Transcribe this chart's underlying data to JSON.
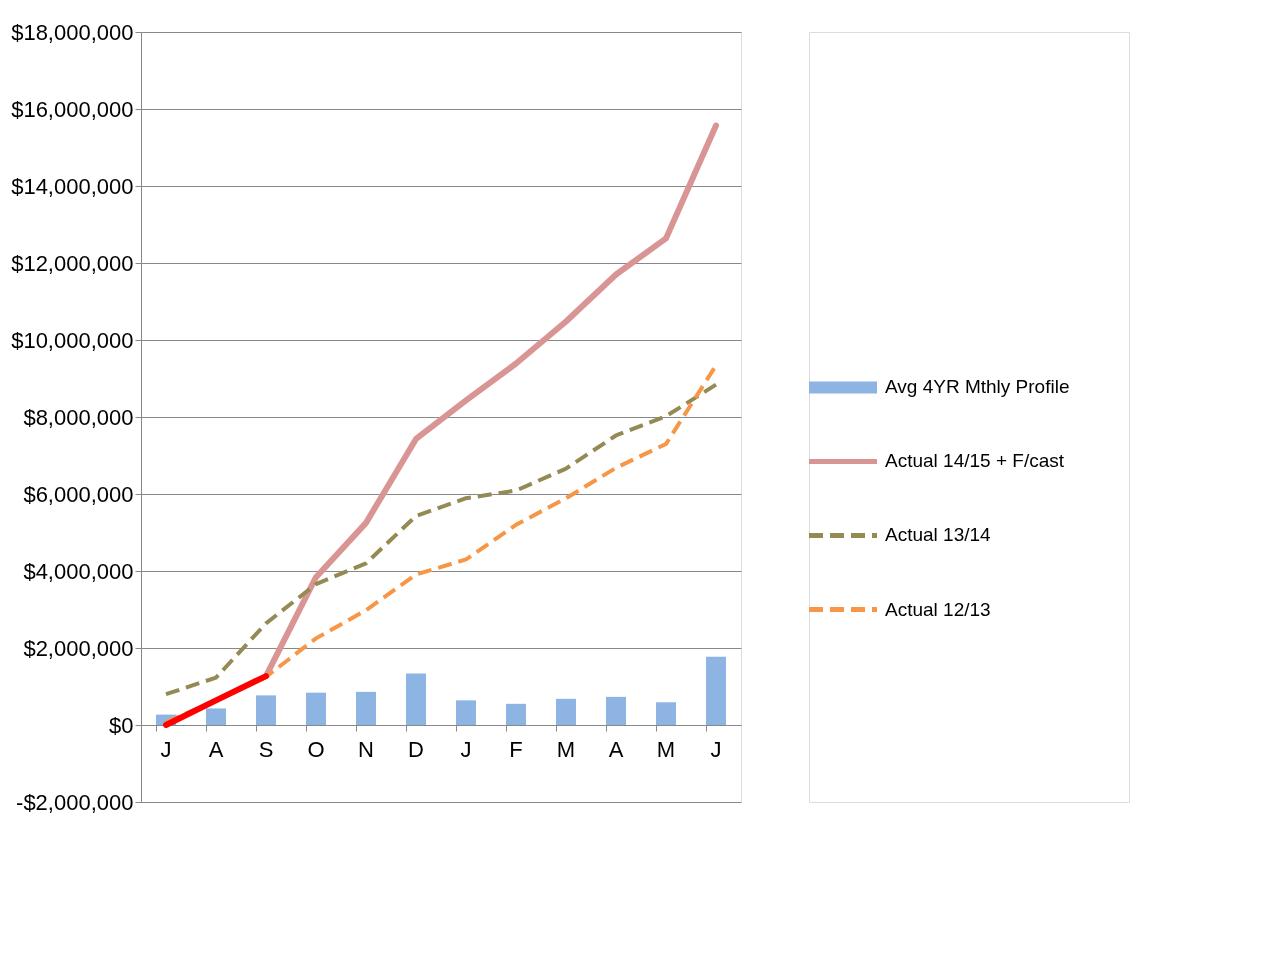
{
  "chart_data": {
    "type": "line",
    "categories": [
      "J",
      "A",
      "S",
      "O",
      "N",
      "D",
      "J",
      "F",
      "M",
      "A",
      "M",
      "J"
    ],
    "series": [
      {
        "name": "Avg 4YR Mthly Profile",
        "type": "bar",
        "color": "#8db4e2",
        "values": [
          270000.0,
          430000.0,
          770000.0,
          840000.0,
          860000.0,
          1340000.0,
          640000.0,
          550000.0,
          680000.0,
          730000.0,
          590000.0,
          1770000.0
        ]
      },
      {
        "name": "Actual 14/15 + F/cast",
        "color": "#d99594",
        "line_style": "solid",
        "values": [
          null,
          null,
          1270000.0,
          3840000.0,
          5250000.0,
          7430000.0,
          8430000.0,
          9390000.0,
          10480000.0,
          11700000.0,
          12640000.0,
          15570000.0
        ]
      },
      {
        "name": "Actual 13/14",
        "color": "#948a54",
        "line_style": "dashed",
        "values": [
          800000.0,
          1230000.0,
          2640000.0,
          3660000.0,
          4200000.0,
          5430000.0,
          5890000.0,
          6090000.0,
          6660000.0,
          7520000.0,
          8020000.0,
          8840000.0
        ]
      },
      {
        "name": "Actual 12/13",
        "color": "#f79646",
        "line_style": "dashed",
        "values": [
          70000.0,
          640000.0,
          1250000.0,
          2250000.0,
          2980000.0,
          3910000.0,
          4300000.0,
          5200000.0,
          5890000.0,
          6680000.0,
          7300000.0,
          9340000.0
        ]
      },
      {
        "color": "#ff0000",
        "line_style": "solid",
        "values": [
          0,
          640000.0,
          1270000.0,
          null,
          null,
          null,
          null,
          null,
          null,
          null,
          null,
          null
        ]
      }
    ],
    "ylim": [
      -2000000,
      18000000
    ],
    "yticks": [
      {
        "value": -2000000,
        "label": "-$2,000,000"
      },
      {
        "value": 0,
        "label": "$0"
      },
      {
        "value": 2000000,
        "label": "$2,000,000"
      },
      {
        "value": 4000000,
        "label": "$4,000,000"
      },
      {
        "value": 6000000,
        "label": "$6,000,000"
      },
      {
        "value": 8000000,
        "label": "$8,000,000"
      },
      {
        "value": 10000000,
        "label": "$10,000,000"
      },
      {
        "value": 12000000,
        "label": "$12,000,000"
      },
      {
        "value": 14000000,
        "label": "$14,000,000"
      },
      {
        "value": 16000000,
        "label": "$16,000,000"
      },
      {
        "value": 18000000,
        "label": "$18,000,000"
      }
    ],
    "grid": "y",
    "legend": "right"
  }
}
